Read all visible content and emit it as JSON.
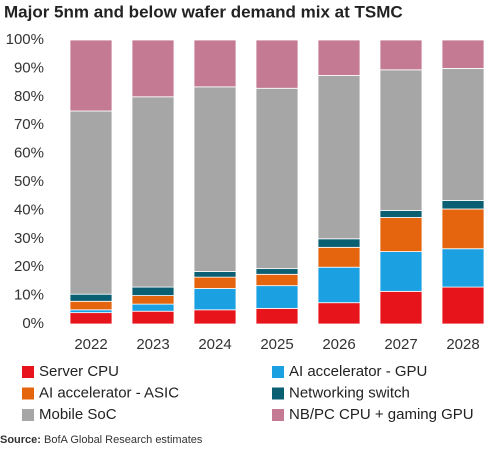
{
  "chart_data": {
    "type": "stacked_bar",
    "title": "Major 5nm and below wafer demand mix at TSMC",
    "categories": [
      "2022",
      "2023",
      "2024",
      "2025",
      "2026",
      "2027",
      "2028"
    ],
    "series": [
      {
        "name": "Server CPU",
        "color": "#e8141b",
        "values": [
          4,
          4.5,
          5,
          5.5,
          7.5,
          11.5,
          13
        ]
      },
      {
        "name": "AI accelerator - GPU",
        "color": "#1ba1e2",
        "values": [
          1,
          2.5,
          7.5,
          8,
          12.5,
          14,
          13.5
        ]
      },
      {
        "name": "AI accelerator - ASIC",
        "color": "#e5640e",
        "values": [
          3,
          3,
          4,
          4,
          7,
          12,
          14
        ]
      },
      {
        "name": "Networking switch",
        "color": "#0b5f73",
        "values": [
          2.5,
          3,
          2,
          2,
          3,
          2.5,
          3
        ]
      },
      {
        "name": "Mobile SoC",
        "color": "#a6a6a6",
        "values": [
          64.5,
          67,
          65,
          63.5,
          57.5,
          49.5,
          46.5
        ]
      },
      {
        "name": "NB/PC CPU + gaming GPU",
        "color": "#c47a93",
        "values": [
          25,
          20,
          16.5,
          17,
          12.5,
          10.5,
          10
        ]
      }
    ],
    "ylim": [
      0,
      100
    ],
    "yticks": [
      {
        "value": 0,
        "label": "0%"
      },
      {
        "value": 10,
        "label": "10%"
      },
      {
        "value": 20,
        "label": "20%"
      },
      {
        "value": 30,
        "label": "30%"
      },
      {
        "value": 40,
        "label": "40%"
      },
      {
        "value": 50,
        "label": "50%"
      },
      {
        "value": 60,
        "label": "60%"
      },
      {
        "value": 70,
        "label": "70%"
      },
      {
        "value": 80,
        "label": "80%"
      },
      {
        "value": 90,
        "label": "90%"
      },
      {
        "value": 100,
        "label": "100%"
      }
    ],
    "grid": false,
    "source": {
      "label": "Source:",
      "text": "BofA Global Research estimates"
    }
  }
}
